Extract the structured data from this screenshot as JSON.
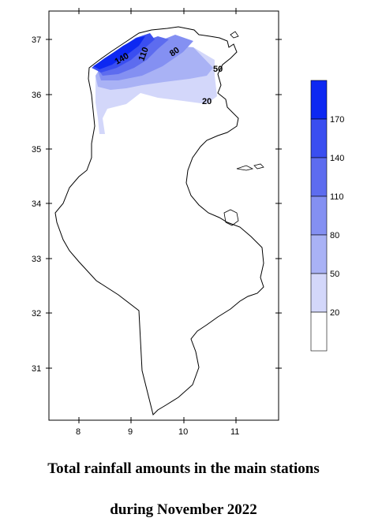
{
  "caption": {
    "line1": "Total rainfall amounts in the main stations",
    "line2": "during November 2022"
  },
  "map": {
    "x_ticks": [
      "8",
      "9",
      "10",
      "11"
    ],
    "y_ticks": [
      "37",
      "36",
      "35",
      "34",
      "33",
      "32",
      "31"
    ],
    "contour_labels": [
      "140",
      "110",
      "80",
      "50",
      "20"
    ]
  },
  "legend": {
    "levels": [
      "170",
      "140",
      "110",
      "80",
      "50",
      "20"
    ],
    "colors": [
      "#0d28f2",
      "#3a4ef0",
      "#5d6cef",
      "#8490f2",
      "#a9b2f5",
      "#d3d7fa",
      "#ffffff"
    ]
  }
}
